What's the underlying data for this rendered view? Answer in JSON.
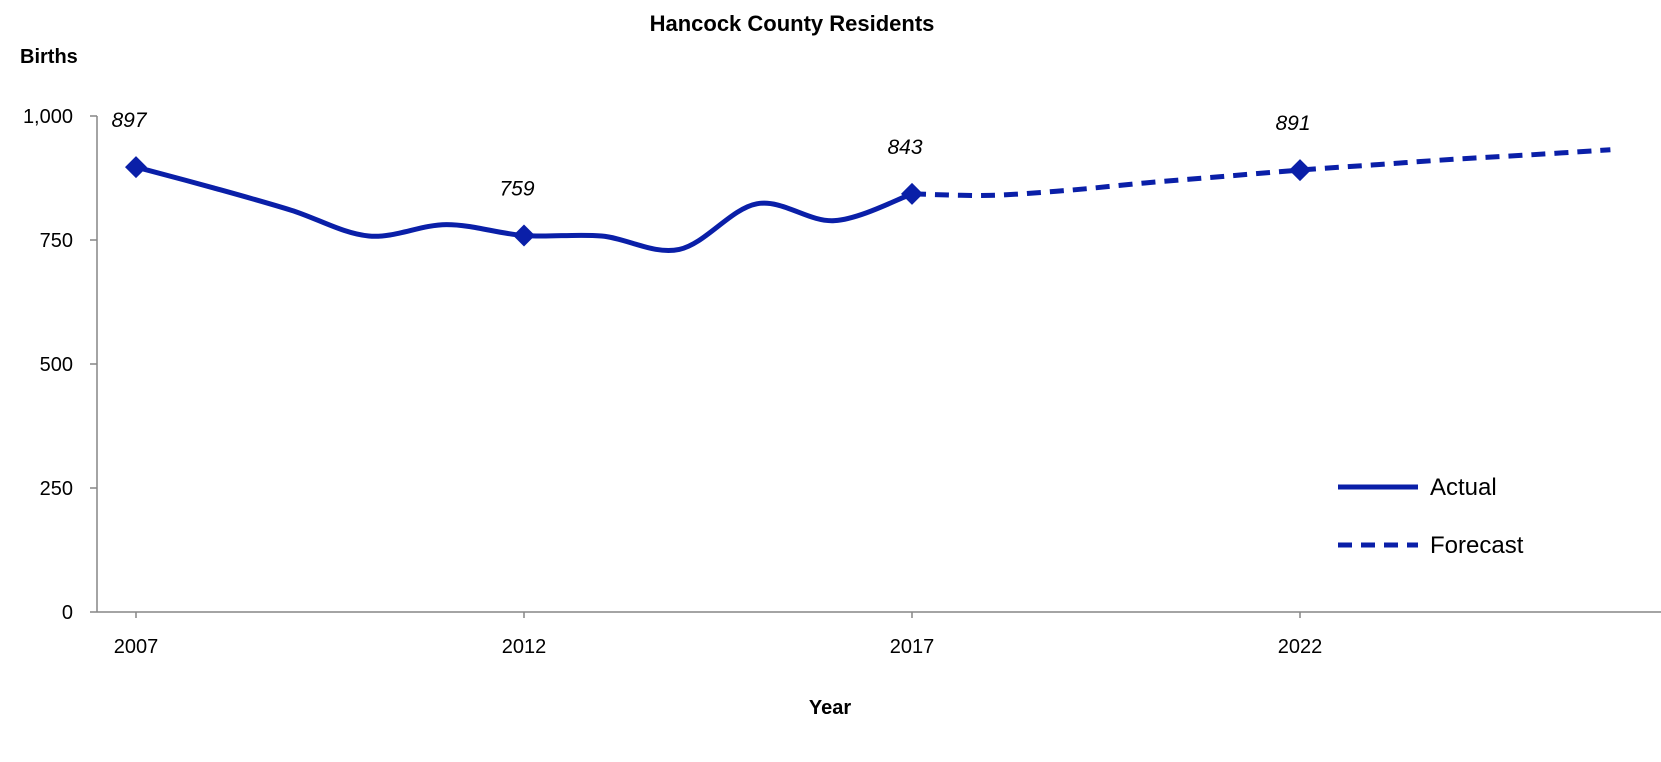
{
  "chart_data": {
    "type": "line",
    "title": "Hancock County Residents",
    "ylabel": "Births",
    "xlabel": "Year",
    "ylim": [
      0,
      1000
    ],
    "xlim": [
      2007,
      2026
    ],
    "y_ticks": [
      {
        "value": 0,
        "label": "0"
      },
      {
        "value": 250,
        "label": "250"
      },
      {
        "value": 500,
        "label": "500"
      },
      {
        "value": 750,
        "label": "750"
      },
      {
        "value": 1000,
        "label": "1,000"
      }
    ],
    "x_ticks": [
      {
        "value": 2007,
        "label": "2007"
      },
      {
        "value": 2012,
        "label": "2012"
      },
      {
        "value": 2017,
        "label": "2017"
      },
      {
        "value": 2022,
        "label": "2022"
      }
    ],
    "grid": false,
    "legend_position": "bottom-right",
    "color": "#0a1fa8",
    "series": [
      {
        "name": "Actual",
        "style": "solid",
        "x": [
          2007,
          2008,
          2009,
          2010,
          2011,
          2012,
          2013,
          2014,
          2015,
          2016,
          2017
        ],
        "y": [
          897,
          855,
          810,
          758,
          781,
          759,
          758,
          731,
          823,
          789,
          843
        ]
      },
      {
        "name": "Forecast",
        "style": "dashed",
        "x": [
          2017,
          2018,
          2019,
          2020,
          2021,
          2022,
          2023,
          2024,
          2025,
          2026
        ],
        "y": [
          843,
          840,
          850,
          865,
          878,
          891,
          902,
          913,
          922,
          932
        ]
      }
    ],
    "data_labels": [
      {
        "x": 2007,
        "y": 897,
        "label": "897"
      },
      {
        "x": 2012,
        "y": 759,
        "label": "759"
      },
      {
        "x": 2017,
        "y": 843,
        "label": "843"
      },
      {
        "x": 2022,
        "y": 891,
        "label": "891"
      }
    ]
  }
}
